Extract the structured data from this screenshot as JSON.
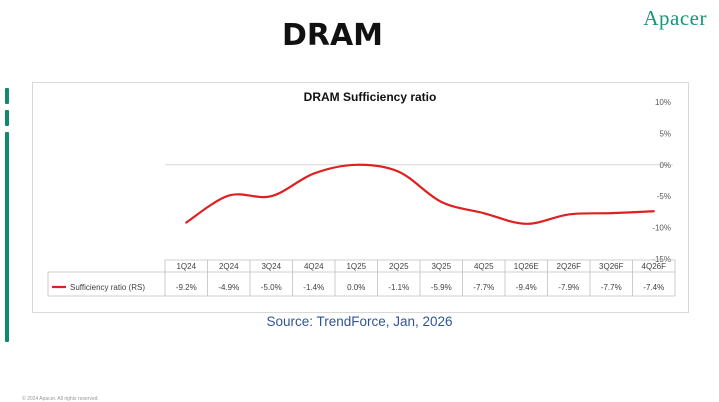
{
  "slide": {
    "title": "DRAM",
    "brand": "Apacer",
    "source": "Source: TrendForce, Jan, 2026",
    "footer": "© 2024 Apacer. All rights reserved."
  },
  "colors": {
    "line": "#e02020",
    "brand": "#12977a",
    "source_text": "#2f5597"
  },
  "chart_data": {
    "type": "line",
    "title": "DRAM Sufficiency ratio",
    "categories": [
      "1Q24",
      "2Q24",
      "3Q24",
      "4Q24",
      "1Q25",
      "2Q25",
      "3Q25",
      "4Q25",
      "1Q26E",
      "2Q26F",
      "3Q26F",
      "4Q26F"
    ],
    "series": [
      {
        "name": "Sufficiency ratio (RS)",
        "values": [
          -9.2,
          -4.9,
          -5.0,
          -1.4,
          0.0,
          -1.1,
          -5.9,
          -7.7,
          -9.4,
          -7.9,
          -7.7,
          -7.4
        ],
        "labels": [
          "-9.2%",
          "-4.9%",
          "-5.0%",
          "-1.4%",
          "0.0%",
          "-1.1%",
          "-5.9%",
          "-7.7%",
          "-9.4%",
          "-7.9%",
          "-7.7%",
          "-7.4%"
        ]
      }
    ],
    "y_axis": {
      "side": "right",
      "ticks": [
        10,
        5,
        0,
        -5,
        -10,
        -15
      ],
      "tick_labels": [
        "10%",
        "5%",
        "0%",
        "-5%",
        "-10%",
        "-15%"
      ],
      "ylim": [
        -15,
        10
      ]
    },
    "gridline_at": 0,
    "legend": "data-table"
  }
}
